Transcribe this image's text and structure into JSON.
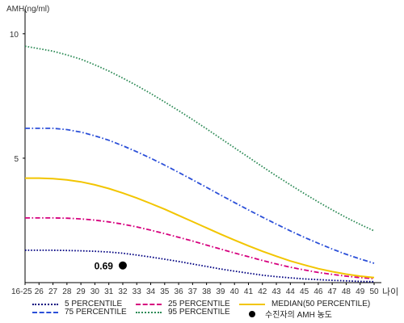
{
  "chart_data": {
    "type": "line",
    "ylabel": "AMH(ng/ml)",
    "xlabel": "나이",
    "categories": [
      "16-25",
      "26",
      "27",
      "28",
      "29",
      "30",
      "31",
      "32",
      "33",
      "34",
      "35",
      "36",
      "37",
      "38",
      "39",
      "40",
      "41",
      "42",
      "43",
      "44",
      "45",
      "46",
      "47",
      "48",
      "49",
      "50"
    ],
    "y_ticks": [
      "5",
      "10"
    ],
    "ylim": [
      0,
      11
    ],
    "grid": false,
    "legend_position": "bottom",
    "series": [
      {
        "name": "5 PERCENTILE",
        "color": "#000080",
        "style": "dotted",
        "values": [
          1.3,
          1.3,
          1.3,
          1.29,
          1.28,
          1.26,
          1.23,
          1.18,
          1.11,
          1.03,
          0.94,
          0.85,
          0.75,
          0.65,
          0.55,
          0.46,
          0.38,
          0.3,
          0.24,
          0.19,
          0.15,
          0.12,
          0.09,
          0.07,
          0.05,
          0.04
        ]
      },
      {
        "name": "25 PERCENTILE",
        "color": "#d6007e",
        "style": "dashdot",
        "values": [
          2.6,
          2.6,
          2.6,
          2.59,
          2.56,
          2.51,
          2.44,
          2.35,
          2.24,
          2.11,
          1.97,
          1.82,
          1.67,
          1.51,
          1.35,
          1.19,
          1.04,
          0.89,
          0.75,
          0.62,
          0.51,
          0.41,
          0.33,
          0.26,
          0.2,
          0.16
        ]
      },
      {
        "name": "75 PERCENTILE",
        "color": "#2b4fd8",
        "style": "dashdot",
        "values": [
          6.2,
          6.2,
          6.2,
          6.15,
          6.05,
          5.9,
          5.72,
          5.5,
          5.26,
          5.0,
          4.72,
          4.43,
          4.13,
          3.83,
          3.52,
          3.22,
          2.92,
          2.63,
          2.35,
          2.08,
          1.82,
          1.58,
          1.35,
          1.14,
          0.95,
          0.78
        ]
      },
      {
        "name": "MEDIAN(50 PERCENTILE)",
        "color": "#f2c500",
        "style": "solid",
        "values": [
          4.2,
          4.2,
          4.18,
          4.13,
          4.05,
          3.93,
          3.78,
          3.6,
          3.4,
          3.18,
          2.95,
          2.7,
          2.45,
          2.2,
          1.95,
          1.71,
          1.48,
          1.26,
          1.06,
          0.87,
          0.71,
          0.56,
          0.44,
          0.34,
          0.26,
          0.2
        ]
      },
      {
        "name": "95 PERCENTILE",
        "color": "#2e8b57",
        "style": "dotted",
        "values": [
          9.5,
          9.4,
          9.3,
          9.15,
          8.98,
          8.75,
          8.5,
          8.22,
          7.92,
          7.6,
          7.26,
          6.91,
          6.55,
          6.18,
          5.8,
          5.42,
          5.04,
          4.66,
          4.29,
          3.93,
          3.58,
          3.24,
          2.92,
          2.62,
          2.34,
          2.08
        ]
      }
    ],
    "marker": {
      "name": "수진자의 AMH 농도",
      "x": "32",
      "y": 0.69,
      "label": "0.69",
      "color": "#000000"
    }
  }
}
